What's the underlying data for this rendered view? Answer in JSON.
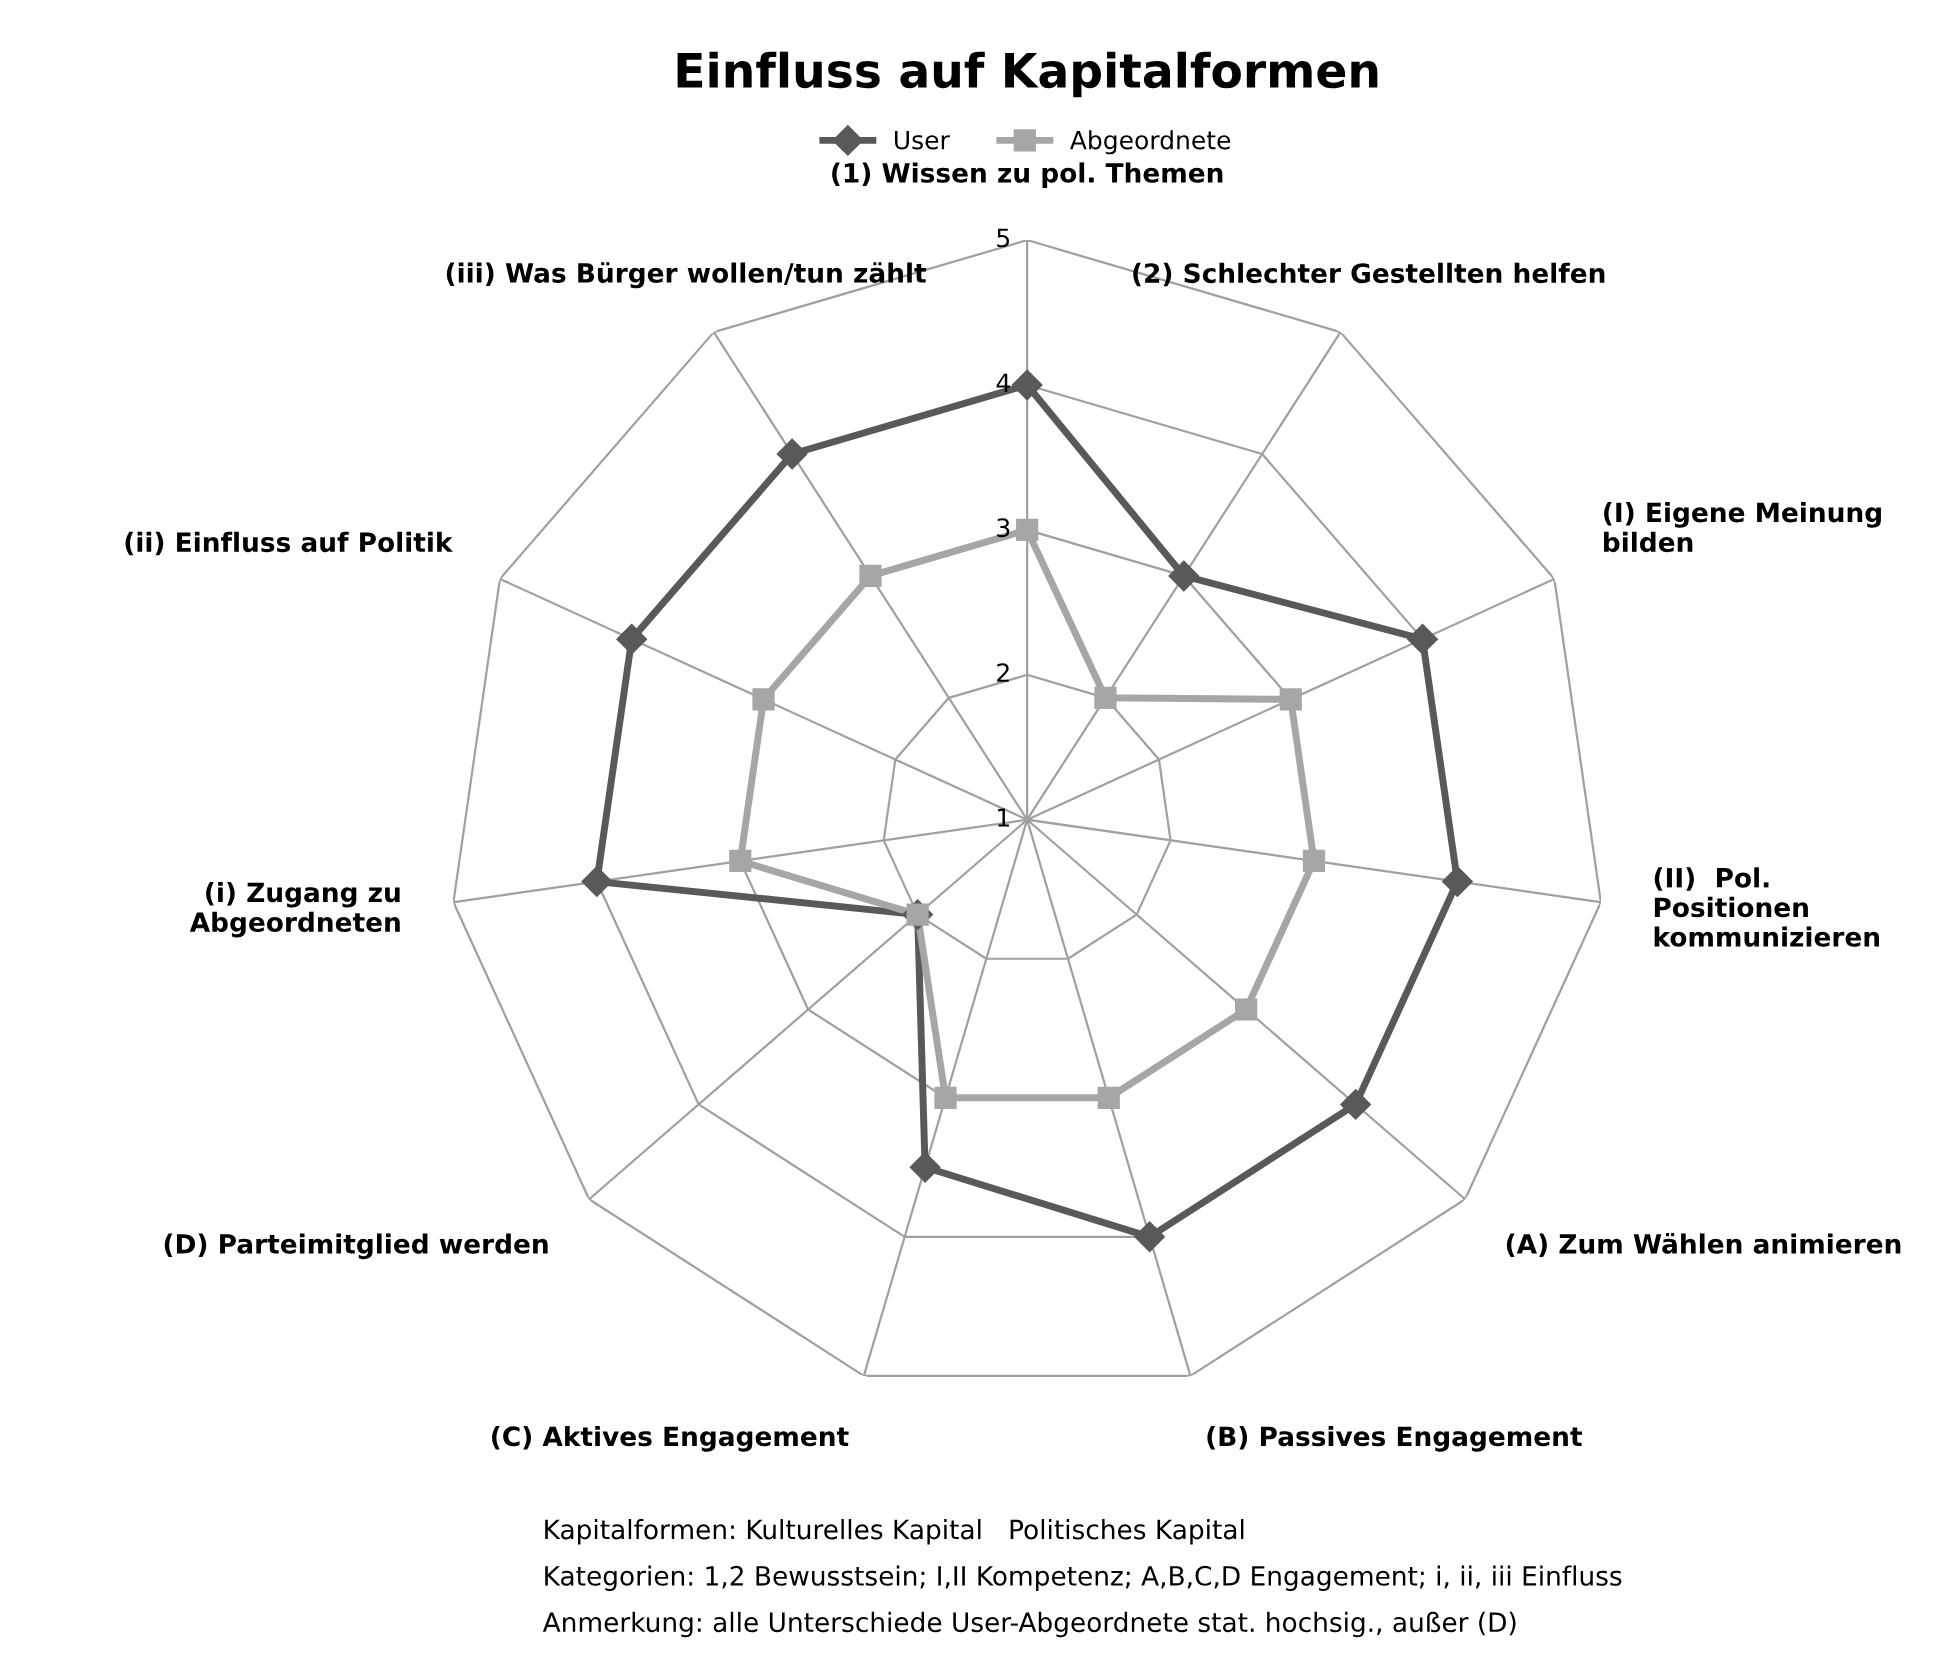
{
  "chart_data": {
    "type": "radar",
    "title": "Einfluss auf Kapitalformen",
    "categories": [
      "(1) Wissen zu pol. Themen",
      "(2) Schlechter Gestellten helfen",
      "(I) Eigene Meinung bilden",
      "(II)  Pol. Positionen kommunizieren",
      "(A) Zum Wählen animieren",
      "(B) Passives Engagement",
      "(C) Aktives Engagement",
      "(D) Parteimitglied werden",
      "(i) Zugang zu Abgeordneten",
      "(ii) Einfluss auf Politik",
      "(iii) Was Bürger wollen/tun zählt"
    ],
    "series": [
      {
        "name": "User",
        "color": "#595959",
        "marker": "diamond",
        "values": [
          4,
          3,
          4,
          4,
          4,
          4,
          3.5,
          2,
          4,
          4,
          4
        ]
      },
      {
        "name": "Abgeordnete",
        "color": "#a6a6a6",
        "marker": "square",
        "values": [
          3,
          2,
          3,
          3,
          3,
          3,
          3,
          2,
          3,
          3,
          3
        ]
      }
    ],
    "ylim": [
      1,
      5
    ],
    "yticks": [
      1,
      2,
      3,
      4,
      5
    ],
    "grid": true,
    "legend": "top",
    "annotations": [
      "Kapitalformen: Kulturelles Kapital   Politisches Kapital",
      "Kategorien: 1,2 Bewusstsein; I,II Kompetenz; A,B,C,D Engagement; i, ii, iii Einfluss",
      "Anmerkung: alle Unterschiede User-Abgeordnete stat. hochsig., außer (D)"
    ]
  }
}
